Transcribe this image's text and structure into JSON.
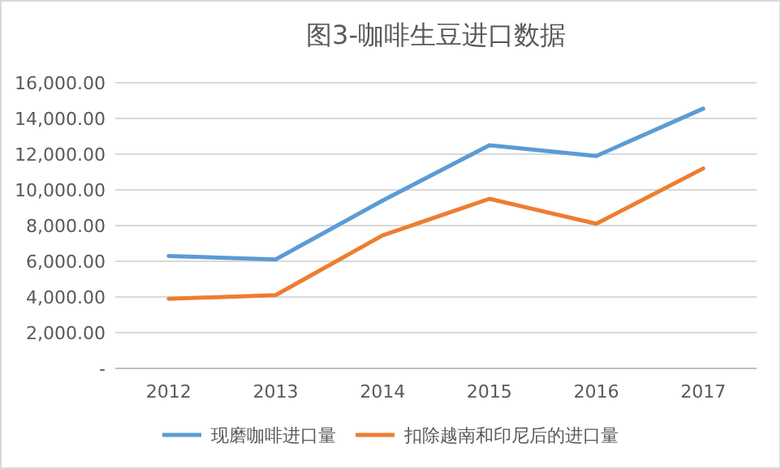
{
  "chart_data": {
    "type": "line",
    "title": "图3-咖啡生豆进口数据",
    "categories": [
      "2012",
      "2013",
      "2014",
      "2015",
      "2016",
      "2017"
    ],
    "series": [
      {
        "name": "现磨咖啡进口量",
        "color": "#5b9bd5",
        "values": [
          6300,
          6100,
          9400,
          12500,
          11900,
          14550
        ]
      },
      {
        "name": "扣除越南和印尼后的进口量",
        "color": "#ed7d31",
        "values": [
          3900,
          4100,
          7450,
          9500,
          8100,
          11200
        ]
      }
    ],
    "ylim": [
      0,
      16000
    ],
    "yticks": [
      {
        "value": 0,
        "label": "-"
      },
      {
        "value": 2000,
        "label": "2,000.00"
      },
      {
        "value": 4000,
        "label": "4,000.00"
      },
      {
        "value": 6000,
        "label": "6,000.00"
      },
      {
        "value": 8000,
        "label": "8,000.00"
      },
      {
        "value": 10000,
        "label": "10,000.00"
      },
      {
        "value": 12000,
        "label": "12,000.00"
      },
      {
        "value": 14000,
        "label": "14,000.00"
      },
      {
        "value": 16000,
        "label": "16,000.00"
      }
    ],
    "grid": "y",
    "legend": "bottom",
    "marker": "none",
    "line_style": "solid"
  }
}
